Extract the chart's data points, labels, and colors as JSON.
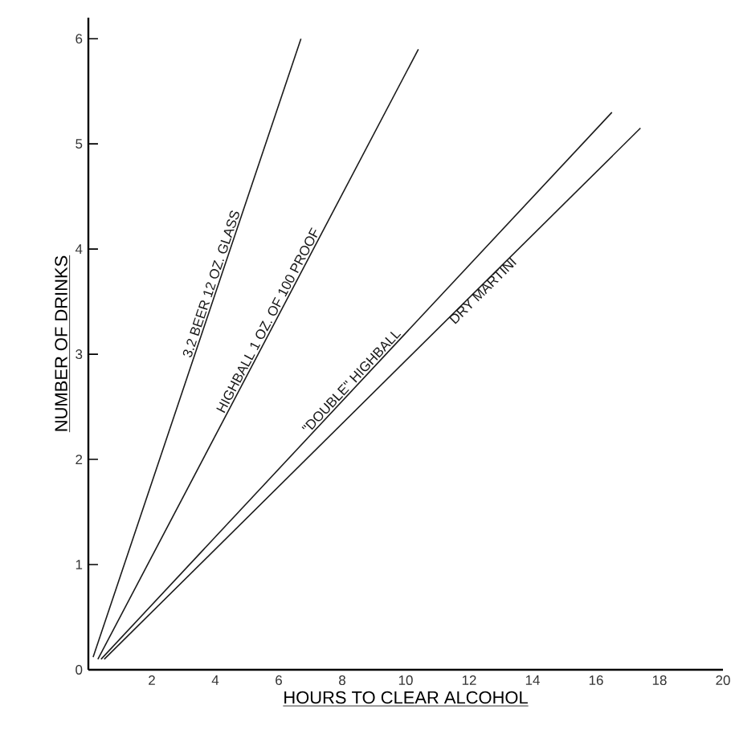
{
  "chart_data": {
    "type": "line",
    "xlabel": "HOURS TO CLEAR ALCOHOL",
    "ylabel": "NUMBER OF DRINKS",
    "xlim": [
      0,
      20
    ],
    "ylim": [
      0,
      6.2
    ],
    "xticks": [
      2,
      4,
      6,
      8,
      10,
      12,
      14,
      16,
      18,
      20
    ],
    "yticks": [
      0,
      1,
      2,
      3,
      4,
      5,
      6
    ],
    "grid": false,
    "legend": false,
    "marker": "none",
    "line_style": "solid",
    "series": [
      {
        "name": "3.2 BEER 12 OZ. GLASS",
        "color": "#1a1a1a",
        "x": [
          0.15,
          6.7
        ],
        "values": [
          0.12,
          6.0
        ]
      },
      {
        "name": "HIGHBALL 1 OZ. OF 100 PROOF",
        "color": "#1a1a1a",
        "x": [
          0.3,
          10.4
        ],
        "values": [
          0.1,
          5.9
        ]
      },
      {
        "name": "\"DOUBLE\" HIGHBALL",
        "color": "#1a1a1a",
        "x": [
          0.4,
          16.5
        ],
        "values": [
          0.1,
          5.3
        ]
      },
      {
        "name": "DRY MARTINI",
        "color": "#1a1a1a",
        "x": [
          0.5,
          17.4
        ],
        "values": [
          0.1,
          5.15
        ]
      }
    ]
  }
}
